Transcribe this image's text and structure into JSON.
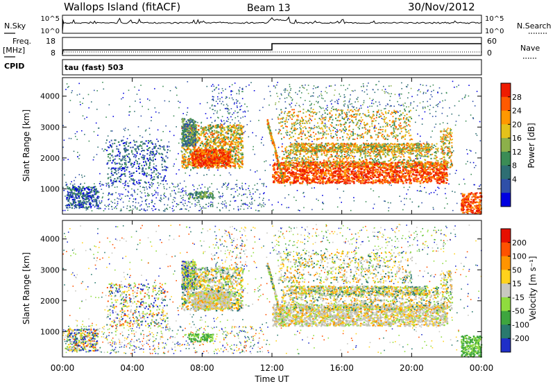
{
  "header": {
    "site": "Wallops Island (fitACF)",
    "beam": "Beam 13",
    "date": "30/Nov/2012"
  },
  "strip_noise": {
    "left_label": "N.Sky",
    "left_ticks": [
      "10^5",
      "10^0"
    ],
    "right_ticks": [
      "10^5",
      "10^0"
    ],
    "right_label": "N.Search"
  },
  "strip_freq": {
    "left_label_1": "Freq.",
    "left_label_2": "[MHz]",
    "left_ticks": [
      "18",
      "8"
    ],
    "right_ticks": [
      "60",
      "0"
    ],
    "right_label": "Nave",
    "cpid_label": "CPID",
    "mode_label": "tau (fast) 503"
  },
  "chart_data": [
    {
      "type": "heatmap",
      "name": "power",
      "ylabel": "Slant Range [km]",
      "y_ticks": [
        "4000",
        "3000",
        "2000",
        "1000"
      ],
      "y_tick_values": [
        4000,
        3000,
        2000,
        1000
      ],
      "ylim": [
        180,
        4600
      ],
      "colorbar_label": "Power [dB]",
      "colorbar_ticks": [
        "28",
        "24",
        "20",
        "16",
        "12",
        "8",
        "4"
      ],
      "colorbar_tick_values": [
        28,
        24,
        20,
        16,
        12,
        8,
        4
      ],
      "colorbar_range": [
        0,
        32
      ],
      "colors": [
        "#0000e0",
        "#2f4fa8",
        "#2e6e73",
        "#3b8c55",
        "#8cb04a",
        "#e3c21a",
        "#ff9800",
        "#ff5a00",
        "#ee1b00"
      ]
    },
    {
      "type": "heatmap",
      "name": "velocity",
      "ylabel": "Slant Range [km]",
      "y_ticks": [
        "4000",
        "3000",
        "2000",
        "1000"
      ],
      "y_tick_values": [
        4000,
        3000,
        2000,
        1000
      ],
      "ylim": [
        180,
        4600
      ],
      "colorbar_label": "Velocity [m s⁻¹]",
      "colorbar_ticks": [
        "200",
        "100",
        "50",
        "15",
        "-15",
        "-50",
        "-100",
        "-200"
      ],
      "colorbar_tick_values": [
        200,
        100,
        50,
        15,
        -15,
        -50,
        -100,
        -200
      ],
      "colors": [
        "#1f2fc8",
        "#2a7a6e",
        "#3ea53e",
        "#8fdc3e",
        "#c8c8c0",
        "#ffd21c",
        "#ff9400",
        "#ff5200",
        "#e60f00"
      ],
      "xlabel": "Time UT",
      "x_ticks": [
        "00:00",
        "04:00",
        "08:00",
        "12:00",
        "16:00",
        "20:00",
        "00:00"
      ],
      "x_tick_values": [
        0,
        4,
        8,
        12,
        16,
        20,
        24
      ]
    }
  ]
}
